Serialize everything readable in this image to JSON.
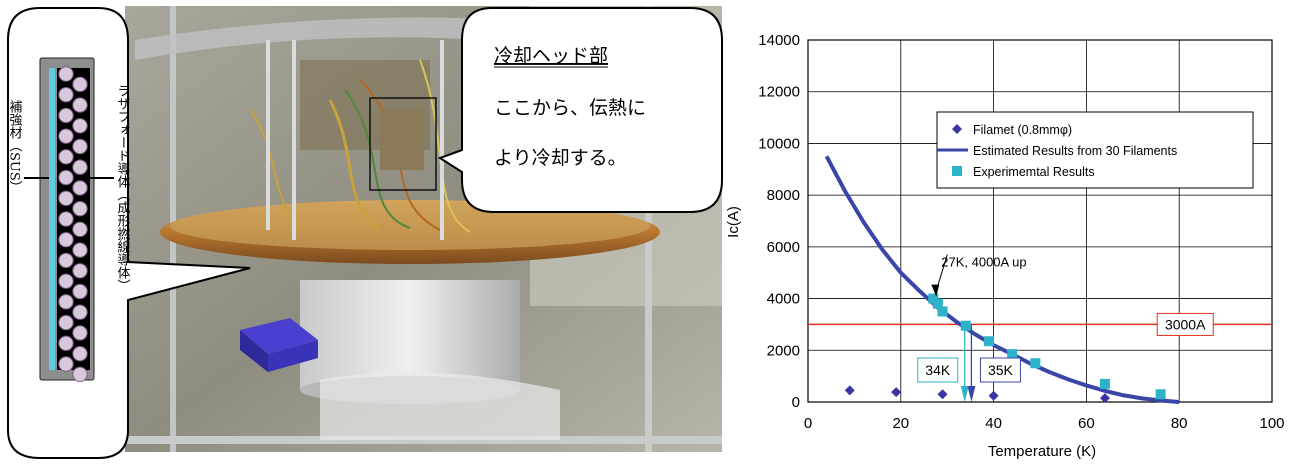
{
  "photo": {
    "callout": {
      "title": "冷却ヘッド部",
      "line2": "ここから、伝熱に",
      "line3": "より冷却する。"
    },
    "cross_section": {
      "left_label": "補強材（SUS）",
      "right_label": "ラザフォード導体（成形撚線導体）"
    }
  },
  "chart_data": {
    "type": "scatter",
    "xlabel": "Temperature (K)",
    "ylabel": "Ic(A)",
    "xlim": [
      0,
      100
    ],
    "ylim": [
      0,
      14000
    ],
    "x_ticks": [
      0,
      20,
      40,
      60,
      80,
      100
    ],
    "y_ticks": [
      0,
      2000,
      4000,
      6000,
      8000,
      10000,
      12000,
      14000
    ],
    "grid": true,
    "legend_position": "upper-center",
    "series": [
      {
        "name": "Filamet (0.8mmφ)",
        "kind": "diamond",
        "color": "#3a35a0",
        "x": [
          9,
          19,
          29,
          40,
          64
        ],
        "y": [
          450,
          380,
          300,
          240,
          150
        ]
      },
      {
        "name": "Estimated Results from 30 Filaments",
        "kind": "line",
        "color": "#3a45a8",
        "x": [
          4,
          8,
          12,
          16,
          20,
          24,
          28,
          32,
          36,
          40,
          44,
          48,
          52,
          56,
          60,
          64,
          68,
          72,
          76,
          80
        ],
        "y": [
          9500,
          8150,
          6950,
          5900,
          5000,
          4300,
          3650,
          3100,
          2620,
          2200,
          1850,
          1480,
          1160,
          880,
          640,
          430,
          260,
          140,
          60,
          0
        ]
      },
      {
        "name": "Experimemtal Results",
        "kind": "square",
        "color": "#2db3c9",
        "x": [
          27,
          28,
          29,
          34,
          39,
          44,
          49,
          64,
          76
        ],
        "y": [
          4000,
          3800,
          3500,
          2950,
          2350,
          1850,
          1500,
          700,
          300
        ]
      }
    ],
    "reference_line": {
      "y": 3000,
      "label": "3000A",
      "color": "#e0301e"
    },
    "annotations": {
      "up_note": "27K, 4000A  up",
      "marker_34": "34K",
      "marker_35": "35K"
    }
  }
}
